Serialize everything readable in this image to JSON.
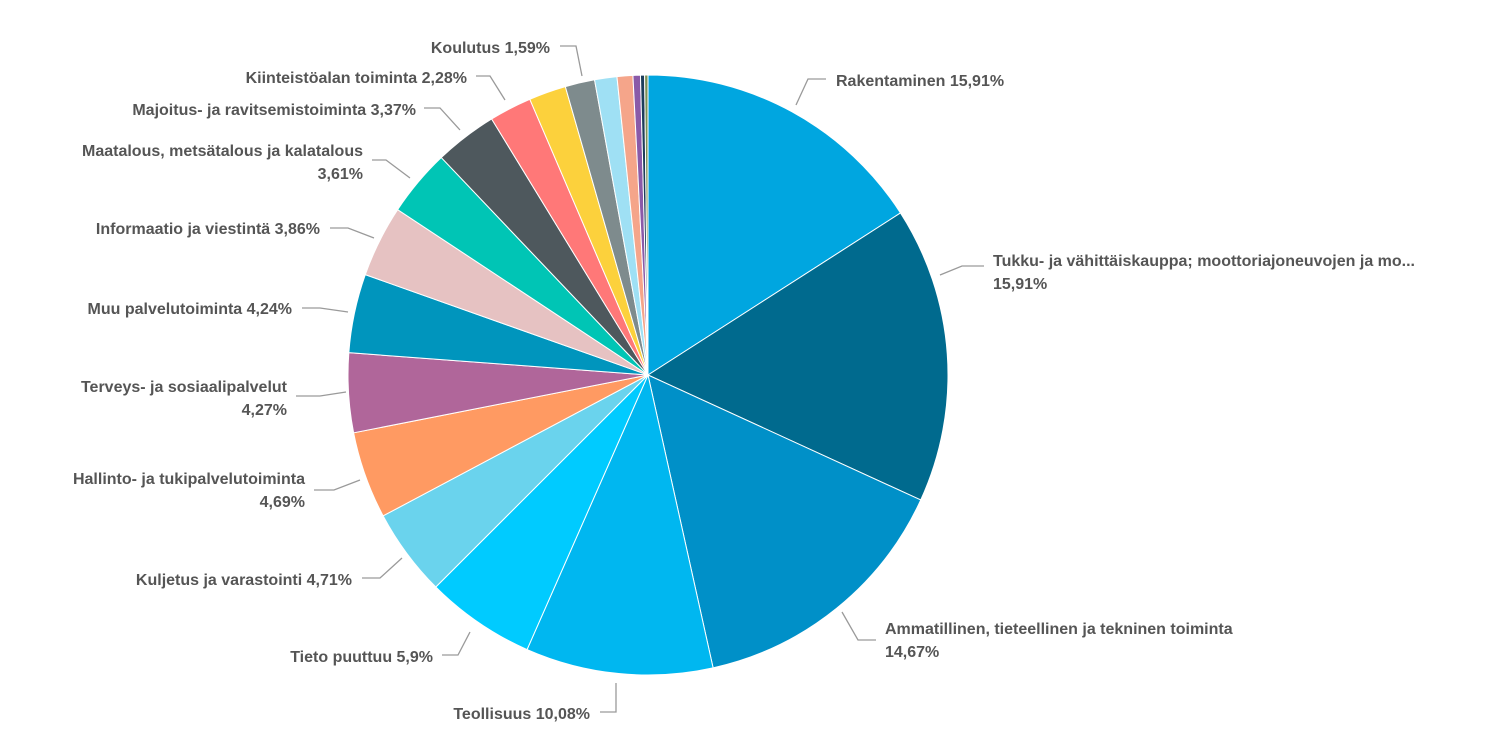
{
  "chart_data": {
    "type": "pie",
    "title": "",
    "start_angle_deg": 0,
    "direction": "clockwise",
    "legend": "none",
    "slices": [
      {
        "name": "Rakentaminen",
        "value": 15.91,
        "label_lines": [
          "Rakentaminen 15,91%"
        ],
        "color": "#00a6e0"
      },
      {
        "name": "Tukku- ja vähittäiskauppa; moottoriajoneuvojen ja mo...",
        "value": 15.91,
        "label_lines": [
          "Tukku- ja vähittäiskauppa; moottoriajoneuvojen ja mo...",
          "15,91%"
        ],
        "color": "#006a8e"
      },
      {
        "name": "Ammatillinen, tieteellinen ja tekninen toiminta",
        "value": 14.67,
        "label_lines": [
          "Ammatillinen, tieteellinen ja tekninen toiminta",
          "14,67%"
        ],
        "color": "#0090c8"
      },
      {
        "name": "Teollisuus",
        "value": 10.08,
        "label_lines": [
          "Teollisuus 10,08%"
        ],
        "color": "#00b7f0"
      },
      {
        "name": "Tieto puuttuu",
        "value": 5.9,
        "label_lines": [
          "Tieto puuttuu 5,9%"
        ],
        "color": "#00cbff"
      },
      {
        "name": "Kuljetus ja varastointi",
        "value": 4.71,
        "label_lines": [
          "Kuljetus ja varastointi 4,71%"
        ],
        "color": "#6ad3ed"
      },
      {
        "name": "Hallinto- ja tukipalvelutoiminta",
        "value": 4.69,
        "label_lines": [
          "Hallinto- ja tukipalvelutoiminta",
          "4,69%"
        ],
        "color": "#ff9a62"
      },
      {
        "name": "Terveys- ja sosiaalipalvelut",
        "value": 4.27,
        "label_lines": [
          "Terveys- ja sosiaalipalvelut",
          "4,27%"
        ],
        "color": "#b0669a"
      },
      {
        "name": "Muu palvelutoiminta",
        "value": 4.24,
        "label_lines": [
          "Muu palvelutoiminta 4,24%"
        ],
        "color": "#0095bd"
      },
      {
        "name": "Informaatio ja viestintä",
        "value": 3.86,
        "label_lines": [
          "Informaatio ja viestintä 3,86%"
        ],
        "color": "#e6c2c2"
      },
      {
        "name": "Maatalous, metsätalous ja kalatalous",
        "value": 3.61,
        "label_lines": [
          "Maatalous, metsätalous ja kalatalous",
          "3,61%"
        ],
        "color": "#00c5b5"
      },
      {
        "name": "Majoitus- ja ravitsemistoiminta",
        "value": 3.37,
        "label_lines": [
          "Majoitus- ja ravitsemistoiminta 3,37%"
        ],
        "color": "#4e585d"
      },
      {
        "name": "Kiinteistöalan toiminta",
        "value": 2.28,
        "label_lines": [
          "Kiinteistöalan toiminta 2,28%"
        ],
        "color": "#ff7878"
      },
      {
        "name": "",
        "value": 2.0,
        "label_lines": [],
        "color": "#fcd13c"
      },
      {
        "name": "Koulutus",
        "value": 1.59,
        "label_lines": [
          "Koulutus 1,59%"
        ],
        "color": "#7e8b8d"
      },
      {
        "name": "",
        "value": 1.2,
        "label_lines": [],
        "color": "#9fe0f4"
      },
      {
        "name": "",
        "value": 0.85,
        "label_lines": [],
        "color": "#f5a58a"
      },
      {
        "name": "",
        "value": 0.4,
        "label_lines": [],
        "color": "#8a5aa8"
      },
      {
        "name": "",
        "value": 0.22,
        "label_lines": [],
        "color": "#1c3d5a"
      },
      {
        "name": "",
        "value": 0.18,
        "label_lines": [],
        "color": "#7a8f57"
      }
    ]
  }
}
